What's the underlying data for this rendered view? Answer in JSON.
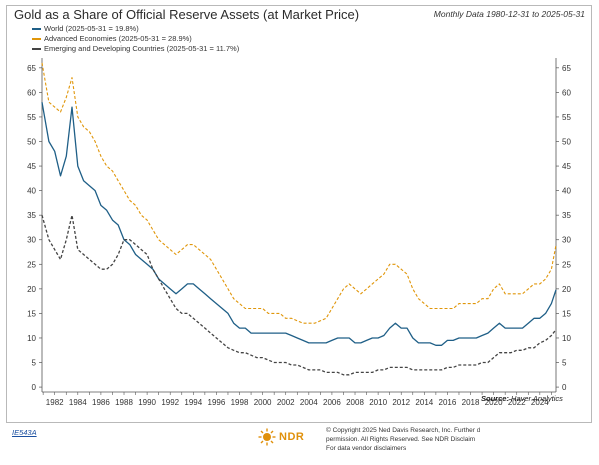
{
  "header": {
    "title": "Gold as a Share of Official Reserve Assets (at Market Price)",
    "subtitle": "Monthly Data 1980-12-31 to 2025-05-31"
  },
  "legend": {
    "world": "World (2025-05-31 = 19.8%)",
    "advanced": "Advanced Economies (2025-05-31 = 28.9%)",
    "emerging": "Emerging and Developing Countries (2025-05-31 = 11.7%)"
  },
  "source": {
    "prefix": "Source:",
    "name": "Haver Analytics"
  },
  "footer": {
    "chart_code": "IE543A",
    "logo_text": "NDR",
    "line1": "© Copyright 2025 Ned Davis Research, Inc. Further d",
    "line2": "permission. All Rights Reserved. See NDR Disclaim",
    "line3": "For data vendor disclaimers"
  },
  "colors": {
    "world": "#1f5f87",
    "advanced": "#e0960a",
    "emerging": "#444444",
    "grid": "#e6e6e6",
    "axis": "#555555",
    "logo": "#e0900a"
  },
  "icons": {
    "logo": "ndr-sun-logo-icon"
  },
  "chart_data": {
    "type": "line",
    "title": "Gold as a Share of Official Reserve Assets (at Market Price)",
    "subtitle": "Monthly Data 1980-12-31 to 2025-05-31",
    "x": [
      1980.9,
      1981.5,
      1982,
      1982.5,
      1983,
      1983.5,
      1984,
      1984.5,
      1985,
      1985.5,
      1986,
      1986.5,
      1987,
      1987.5,
      1988,
      1988.5,
      1989,
      1989.5,
      1990,
      1990.5,
      1991,
      1991.5,
      1992,
      1992.5,
      1993,
      1993.5,
      1994,
      1994.5,
      1995,
      1995.5,
      1996,
      1996.5,
      1997,
      1997.5,
      1998,
      1998.5,
      1999,
      1999.5,
      2000,
      2000.5,
      2001,
      2001.5,
      2002,
      2002.5,
      2003,
      2003.5,
      2004,
      2004.5,
      2005,
      2005.5,
      2006,
      2006.5,
      2007,
      2007.5,
      2008,
      2008.5,
      2009,
      2009.5,
      2010,
      2010.5,
      2011,
      2011.5,
      2012,
      2012.5,
      2013,
      2013.5,
      2014,
      2014.5,
      2015,
      2015.5,
      2016,
      2016.5,
      2017,
      2017.5,
      2018,
      2018.5,
      2019,
      2019.5,
      2020,
      2020.5,
      2021,
      2021.5,
      2022,
      2022.5,
      2023,
      2023.5,
      2024,
      2024.5,
      2025,
      2025.4
    ],
    "series": [
      {
        "name": "World (2025-05-31 = 19.8%)",
        "style": "solid",
        "values": [
          58,
          50,
          48,
          43,
          47,
          57,
          45,
          42,
          41,
          40,
          37,
          36,
          34,
          33,
          30,
          29,
          27,
          26,
          25,
          24,
          22,
          21,
          20,
          19,
          20,
          21,
          21,
          20,
          19,
          18,
          17,
          16,
          15,
          13,
          12,
          12,
          11,
          11,
          11,
          11,
          11,
          11,
          11,
          10.5,
          10,
          9.5,
          9,
          9,
          9,
          9,
          9.5,
          10,
          10,
          10,
          9,
          9,
          9.5,
          10,
          10,
          10.5,
          12,
          13,
          12,
          12,
          10,
          9,
          9,
          9,
          8.5,
          8.5,
          9.5,
          9.5,
          10,
          10,
          10,
          10,
          10.5,
          11,
          12,
          13,
          12,
          12,
          12,
          12,
          13,
          14,
          14,
          15,
          17,
          19.8
        ]
      },
      {
        "name": "Advanced Economies (2025-05-31 = 28.9%)",
        "style": "dash",
        "values": [
          66,
          58,
          57,
          56,
          59,
          63,
          55,
          53,
          52,
          50,
          47,
          45,
          44,
          42,
          40,
          38,
          37,
          35,
          34,
          32,
          30,
          29,
          28,
          27,
          28,
          29,
          29,
          28,
          27,
          26,
          24,
          22,
          20,
          18,
          17,
          16,
          16,
          16,
          16,
          15,
          15,
          15,
          14,
          14,
          13.5,
          13,
          13,
          13,
          13.5,
          14,
          16,
          18,
          20,
          21,
          20,
          19,
          20,
          21,
          22,
          23,
          25,
          25,
          24,
          23,
          20,
          18,
          17,
          16,
          16,
          16,
          16,
          16,
          17,
          17,
          17,
          17,
          18,
          18,
          20,
          21,
          19,
          19,
          19,
          19,
          20,
          21,
          21,
          22,
          24,
          28.9
        ]
      },
      {
        "name": "Emerging and Developing Countries (2025-05-31 = 11.7%)",
        "style": "dash",
        "values": [
          35,
          30,
          28,
          26,
          30,
          35,
          28,
          27,
          26,
          25,
          24,
          24,
          25,
          27,
          30,
          30,
          29,
          28,
          27,
          24,
          22,
          20,
          18,
          16,
          15,
          15,
          14,
          13,
          12,
          11,
          10,
          9,
          8,
          7.5,
          7,
          7,
          6.5,
          6,
          6,
          5.5,
          5,
          5,
          5,
          4.5,
          4.5,
          4,
          3.5,
          3.5,
          3.5,
          3,
          3,
          3,
          2.5,
          2.5,
          3,
          3,
          3,
          3,
          3.5,
          3.5,
          4,
          4,
          4,
          4,
          3.5,
          3.5,
          3.5,
          3.5,
          3.5,
          3.5,
          4,
          4,
          4.5,
          4.5,
          4.5,
          4.5,
          5,
          5,
          6,
          7,
          7,
          7,
          7.5,
          7.5,
          8,
          8,
          9,
          9.5,
          10.5,
          11.7
        ]
      }
    ],
    "xlim": [
      1980.9,
      2025.4
    ],
    "ylim": [
      -1,
      67
    ],
    "yticks": [
      0,
      5,
      10,
      15,
      20,
      25,
      30,
      35,
      40,
      45,
      50,
      55,
      60,
      65
    ],
    "xticks": [
      1982,
      1984,
      1986,
      1988,
      1990,
      1992,
      1994,
      1996,
      1998,
      2000,
      2002,
      2004,
      2006,
      2008,
      2010,
      2012,
      2014,
      2016,
      2018,
      2020,
      2022,
      2024
    ],
    "grid": false,
    "legend_position": "top-left",
    "source": "Source: Haver Analytics"
  }
}
